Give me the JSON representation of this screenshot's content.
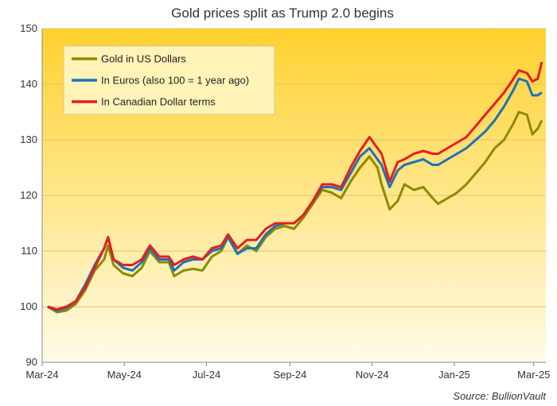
{
  "chart_data": {
    "type": "line",
    "title": "Gold prices split as Trump  2.0 begins",
    "source": "Source: BullionVault",
    "ylim": [
      90,
      150
    ],
    "yticks": [
      90,
      100,
      110,
      120,
      130,
      140,
      150
    ],
    "xlim": [
      "2024-03-01",
      "2025-03-10"
    ],
    "xticks": [
      {
        "date": "2024-03-01",
        "label": "Mar-24"
      },
      {
        "date": "2024-05-01",
        "label": "May-24"
      },
      {
        "date": "2024-07-01",
        "label": "Jul-24"
      },
      {
        "date": "2024-09-01",
        "label": "Sep-24"
      },
      {
        "date": "2024-11-01",
        "label": "Nov-24"
      },
      {
        "date": "2025-01-01",
        "label": "Jan-25"
      },
      {
        "date": "2025-03-01",
        "label": "Mar-25"
      }
    ],
    "grid": "horizontal",
    "legend_position": "top-left",
    "background_gradient": [
      "#ffd12e",
      "#fffbe8"
    ],
    "series": [
      {
        "name": "Gold in US Dollars",
        "color": "#8b8b00",
        "points": [
          [
            "2024-03-05",
            100.0
          ],
          [
            "2024-03-12",
            99.0
          ],
          [
            "2024-03-19",
            99.3
          ],
          [
            "2024-03-26",
            100.5
          ],
          [
            "2024-04-02",
            103.0
          ],
          [
            "2024-04-09",
            106.5
          ],
          [
            "2024-04-16",
            108.5
          ],
          [
            "2024-04-19",
            111.0
          ],
          [
            "2024-04-23",
            107.5
          ],
          [
            "2024-04-30",
            106.0
          ],
          [
            "2024-05-07",
            105.5
          ],
          [
            "2024-05-14",
            107.0
          ],
          [
            "2024-05-20",
            110.0
          ],
          [
            "2024-05-27",
            108.0
          ],
          [
            "2024-06-03",
            108.0
          ],
          [
            "2024-06-07",
            105.5
          ],
          [
            "2024-06-14",
            106.5
          ],
          [
            "2024-06-21",
            106.8
          ],
          [
            "2024-06-28",
            106.5
          ],
          [
            "2024-07-05",
            109.0
          ],
          [
            "2024-07-12",
            110.0
          ],
          [
            "2024-07-17",
            112.5
          ],
          [
            "2024-07-24",
            109.5
          ],
          [
            "2024-07-31",
            111.0
          ],
          [
            "2024-08-07",
            110.0
          ],
          [
            "2024-08-14",
            112.5
          ],
          [
            "2024-08-21",
            114.0
          ],
          [
            "2024-08-28",
            114.5
          ],
          [
            "2024-09-04",
            114.0
          ],
          [
            "2024-09-11",
            116.0
          ],
          [
            "2024-09-18",
            118.5
          ],
          [
            "2024-09-25",
            121.0
          ],
          [
            "2024-10-02",
            120.5
          ],
          [
            "2024-10-09",
            119.5
          ],
          [
            "2024-10-16",
            122.5
          ],
          [
            "2024-10-23",
            125.0
          ],
          [
            "2024-10-30",
            127.0
          ],
          [
            "2024-11-05",
            125.0
          ],
          [
            "2024-11-08",
            122.0
          ],
          [
            "2024-11-14",
            117.5
          ],
          [
            "2024-11-20",
            119.0
          ],
          [
            "2024-11-25",
            122.0
          ],
          [
            "2024-12-02",
            121.0
          ],
          [
            "2024-12-09",
            121.5
          ],
          [
            "2024-12-16",
            119.5
          ],
          [
            "2024-12-20",
            118.5
          ],
          [
            "2024-12-27",
            119.5
          ],
          [
            "2025-01-03",
            120.5
          ],
          [
            "2025-01-10",
            122.0
          ],
          [
            "2025-01-17",
            124.0
          ],
          [
            "2025-01-24",
            126.0
          ],
          [
            "2025-01-31",
            128.5
          ],
          [
            "2025-02-07",
            130.0
          ],
          [
            "2025-02-14",
            133.0
          ],
          [
            "2025-02-18",
            135.0
          ],
          [
            "2025-02-24",
            134.5
          ],
          [
            "2025-02-28",
            131.0
          ],
          [
            "2025-03-04",
            132.0
          ],
          [
            "2025-03-07",
            133.5
          ]
        ]
      },
      {
        "name": "In Euros (also 100 = 1 year ago)",
        "color": "#1c73b9",
        "points": [
          [
            "2024-03-05",
            100.0
          ],
          [
            "2024-03-12",
            99.3
          ],
          [
            "2024-03-19",
            99.8
          ],
          [
            "2024-03-26",
            101.0
          ],
          [
            "2024-04-02",
            104.0
          ],
          [
            "2024-04-09",
            107.5
          ],
          [
            "2024-04-16",
            110.5
          ],
          [
            "2024-04-19",
            112.5
          ],
          [
            "2024-04-23",
            108.5
          ],
          [
            "2024-04-30",
            107.0
          ],
          [
            "2024-05-07",
            106.5
          ],
          [
            "2024-05-14",
            108.0
          ],
          [
            "2024-05-20",
            110.5
          ],
          [
            "2024-05-27",
            108.5
          ],
          [
            "2024-06-03",
            108.5
          ],
          [
            "2024-06-07",
            106.5
          ],
          [
            "2024-06-14",
            108.0
          ],
          [
            "2024-06-21",
            108.5
          ],
          [
            "2024-06-28",
            108.5
          ],
          [
            "2024-07-05",
            110.0
          ],
          [
            "2024-07-12",
            110.5
          ],
          [
            "2024-07-17",
            112.5
          ],
          [
            "2024-07-24",
            109.5
          ],
          [
            "2024-07-31",
            110.5
          ],
          [
            "2024-08-07",
            110.5
          ],
          [
            "2024-08-14",
            113.0
          ],
          [
            "2024-08-21",
            114.5
          ],
          [
            "2024-08-28",
            115.0
          ],
          [
            "2024-09-04",
            115.0
          ],
          [
            "2024-09-11",
            116.5
          ],
          [
            "2024-09-18",
            119.0
          ],
          [
            "2024-09-25",
            121.5
          ],
          [
            "2024-10-02",
            121.5
          ],
          [
            "2024-10-09",
            121.0
          ],
          [
            "2024-10-16",
            124.0
          ],
          [
            "2024-10-23",
            127.0
          ],
          [
            "2024-10-30",
            128.5
          ],
          [
            "2024-11-05",
            126.5
          ],
          [
            "2024-11-08",
            125.5
          ],
          [
            "2024-11-14",
            121.5
          ],
          [
            "2024-11-20",
            124.5
          ],
          [
            "2024-11-25",
            125.5
          ],
          [
            "2024-12-02",
            126.0
          ],
          [
            "2024-12-09",
            126.5
          ],
          [
            "2024-12-16",
            125.5
          ],
          [
            "2024-12-20",
            125.5
          ],
          [
            "2024-12-27",
            126.5
          ],
          [
            "2025-01-03",
            127.5
          ],
          [
            "2025-01-10",
            128.5
          ],
          [
            "2025-01-17",
            130.0
          ],
          [
            "2025-01-24",
            131.5
          ],
          [
            "2025-01-31",
            133.5
          ],
          [
            "2025-02-07",
            136.0
          ],
          [
            "2025-02-14",
            139.0
          ],
          [
            "2025-02-18",
            141.0
          ],
          [
            "2025-02-24",
            140.5
          ],
          [
            "2025-02-28",
            138.0
          ],
          [
            "2025-03-04",
            138.0
          ],
          [
            "2025-03-07",
            138.5
          ]
        ]
      },
      {
        "name": "In Canadian Dollar terms",
        "color": "#e61e1e",
        "points": [
          [
            "2024-03-05",
            100.0
          ],
          [
            "2024-03-12",
            99.5
          ],
          [
            "2024-03-19",
            100.0
          ],
          [
            "2024-03-26",
            101.0
          ],
          [
            "2024-04-02",
            103.5
          ],
          [
            "2024-04-09",
            107.0
          ],
          [
            "2024-04-16",
            110.5
          ],
          [
            "2024-04-19",
            112.5
          ],
          [
            "2024-04-23",
            108.5
          ],
          [
            "2024-04-30",
            107.5
          ],
          [
            "2024-05-07",
            107.5
          ],
          [
            "2024-05-14",
            108.5
          ],
          [
            "2024-05-20",
            111.0
          ],
          [
            "2024-05-27",
            109.0
          ],
          [
            "2024-06-03",
            109.0
          ],
          [
            "2024-06-07",
            107.5
          ],
          [
            "2024-06-14",
            108.5
          ],
          [
            "2024-06-21",
            109.0
          ],
          [
            "2024-06-28",
            108.5
          ],
          [
            "2024-07-05",
            110.5
          ],
          [
            "2024-07-12",
            111.0
          ],
          [
            "2024-07-17",
            113.0
          ],
          [
            "2024-07-24",
            110.5
          ],
          [
            "2024-07-31",
            112.0
          ],
          [
            "2024-08-07",
            112.0
          ],
          [
            "2024-08-14",
            114.0
          ],
          [
            "2024-08-21",
            115.0
          ],
          [
            "2024-08-28",
            115.0
          ],
          [
            "2024-09-04",
            115.0
          ],
          [
            "2024-09-11",
            116.5
          ],
          [
            "2024-09-18",
            119.0
          ],
          [
            "2024-09-25",
            122.0
          ],
          [
            "2024-10-02",
            122.0
          ],
          [
            "2024-10-09",
            121.5
          ],
          [
            "2024-10-16",
            125.0
          ],
          [
            "2024-10-23",
            128.0
          ],
          [
            "2024-10-30",
            130.5
          ],
          [
            "2024-11-05",
            128.5
          ],
          [
            "2024-11-08",
            127.5
          ],
          [
            "2024-11-14",
            122.5
          ],
          [
            "2024-11-20",
            126.0
          ],
          [
            "2024-11-25",
            126.5
          ],
          [
            "2024-12-02",
            127.5
          ],
          [
            "2024-12-09",
            128.0
          ],
          [
            "2024-12-16",
            127.5
          ],
          [
            "2024-12-20",
            127.5
          ],
          [
            "2024-12-27",
            128.5
          ],
          [
            "2025-01-03",
            129.5
          ],
          [
            "2025-01-10",
            130.5
          ],
          [
            "2025-01-17",
            132.5
          ],
          [
            "2025-01-24",
            134.5
          ],
          [
            "2025-01-31",
            136.5
          ],
          [
            "2025-02-07",
            138.5
          ],
          [
            "2025-02-14",
            141.0
          ],
          [
            "2025-02-18",
            142.5
          ],
          [
            "2025-02-24",
            142.0
          ],
          [
            "2025-02-28",
            140.5
          ],
          [
            "2025-03-04",
            141.0
          ],
          [
            "2025-03-07",
            144.0
          ]
        ]
      }
    ]
  }
}
